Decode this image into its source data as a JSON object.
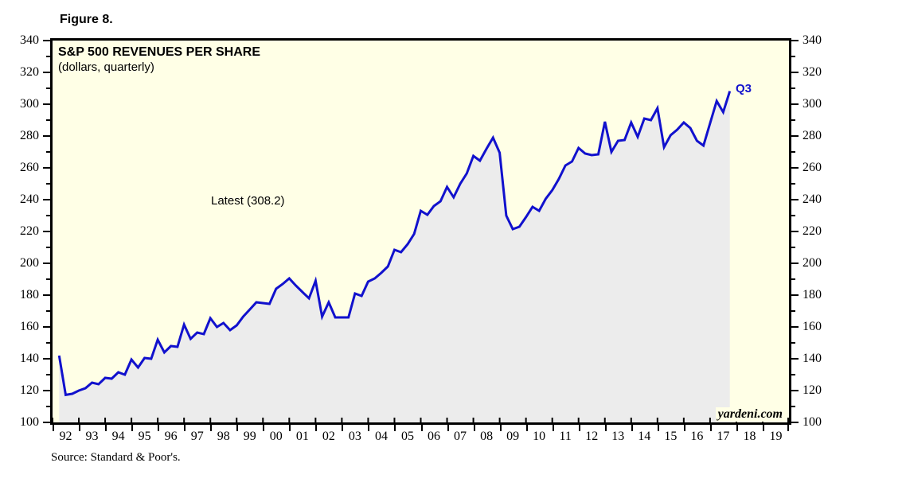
{
  "figure_label": "Figure 8.",
  "chart": {
    "title": "S&P 500 REVENUES PER SHARE",
    "subtitle": "(dollars, quarterly)",
    "annotation": "Latest (308.2)",
    "endpoint_label": "Q3",
    "watermark": "yardeni.com",
    "colors": {
      "line": "#1111cd",
      "fill_under_line": "#ececec",
      "plot_background": "#ffffe6",
      "frame": "#000000",
      "endpoint_label": "#1111cd"
    }
  },
  "source": "Source: Standard & Poor's.",
  "chart_data": {
    "type": "line",
    "title": "S&P 500 REVENUES PER SHARE",
    "subtitle": "(dollars, quarterly)",
    "series_name": "S&P 500 revenues per share (dollars, quarterly)",
    "frequency": "quarterly",
    "start_quarter": "1992Q1",
    "end_quarter": "2017Q3",
    "latest_value": 308.2,
    "ylim": [
      100,
      340
    ],
    "y_major_tick_step": 20,
    "y_minor_tick_step": 10,
    "y_tick_labels": [
      "100",
      "120",
      "140",
      "160",
      "180",
      "200",
      "220",
      "240",
      "260",
      "280",
      "300",
      "320",
      "340"
    ],
    "x_year_labels": [
      "92",
      "93",
      "94",
      "95",
      "96",
      "97",
      "98",
      "99",
      "00",
      "01",
      "02",
      "03",
      "04",
      "05",
      "06",
      "07",
      "08",
      "09",
      "10",
      "11",
      "12",
      "13",
      "14",
      "15",
      "16",
      "17",
      "18",
      "19"
    ],
    "x_axis_span_years": 28,
    "grid": false,
    "legend": false,
    "fill_under_line": true,
    "values": [
      142.0,
      117.3,
      118.0,
      120.0,
      121.5,
      125.0,
      124.0,
      128.0,
      127.5,
      131.5,
      130.0,
      139.5,
      134.5,
      140.5,
      140.0,
      152.0,
      144.0,
      148.0,
      147.5,
      161.5,
      152.5,
      156.5,
      155.5,
      165.5,
      160.0,
      162.5,
      158.0,
      161.0,
      166.5,
      171.0,
      175.5,
      175.0,
      174.5,
      184.0,
      187.0,
      190.5,
      186.0,
      182.0,
      178.0,
      189.0,
      166.5,
      175.5,
      166.0,
      166.0,
      166.0,
      181.0,
      179.5,
      188.5,
      190.5,
      194.0,
      198.0,
      208.5,
      207.0,
      212.0,
      218.5,
      233.0,
      230.5,
      236.0,
      239.0,
      248.0,
      241.5,
      250.0,
      256.5,
      267.5,
      264.5,
      272.0,
      279.0,
      269.5,
      230.0,
      221.5,
      223.0,
      229.0,
      235.5,
      233.0,
      240.5,
      246.0,
      253.0,
      261.5,
      264.0,
      272.5,
      269.0,
      268.0,
      268.5,
      289.0,
      270.0,
      277.0,
      277.5,
      288.5,
      279.5,
      291.0,
      290.0,
      297.5,
      273.0,
      280.5,
      284.0,
      288.5,
      285.0,
      277.0,
      274.0,
      288.0,
      302.0,
      295.0,
      308.2
    ]
  }
}
